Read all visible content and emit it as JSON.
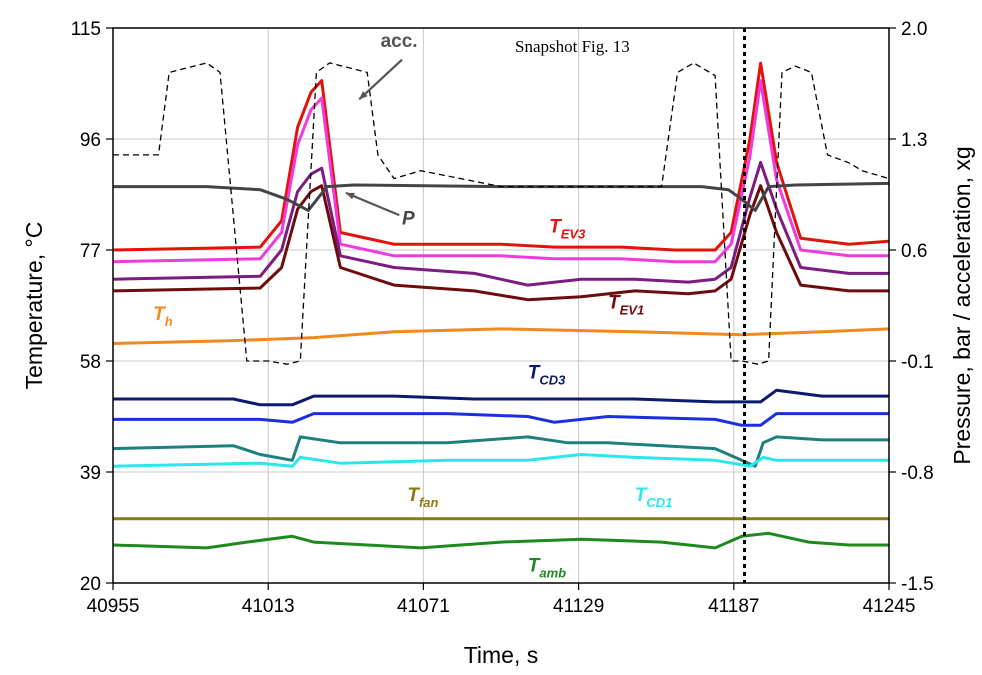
{
  "chart_data": {
    "type": "line",
    "title": "",
    "annotation_text": "Snapshot Fig. 13",
    "xlabel": "Time, s",
    "ylabel_left": "Temperature, °C",
    "ylabel_right": "Pressure, bar  /  acceleration, xg",
    "xlim": [
      40955,
      41245
    ],
    "ylim_left": [
      20,
      115
    ],
    "ylim_right": [
      -1.5,
      2.0
    ],
    "x_ticks": [
      "40955",
      "41013",
      "41071",
      "41129",
      "41187",
      "41245"
    ],
    "y_left_ticks": [
      "20",
      "39",
      "58",
      "77",
      "96",
      "115"
    ],
    "y_right_ticks": [
      "-1.5",
      "-0.8",
      "-0.1",
      "0.6",
      "1.3",
      "2.0"
    ],
    "grid": true,
    "snapshot_time": 41191,
    "series": [
      {
        "id": "TEV3",
        "label": "T",
        "sub": "EV3",
        "color": "#e3120b",
        "axis": "left",
        "x": [
          40955,
          41010,
          41018,
          41024,
          41029,
          41033,
          41040,
          41060,
          41100,
          41120,
          41145,
          41165,
          41180,
          41186,
          41193,
          41197,
          41203,
          41212,
          41230,
          41245
        ],
        "y": [
          77,
          77.5,
          82,
          98,
          104,
          106,
          80,
          78,
          78,
          77.5,
          77.5,
          77,
          77,
          80,
          96,
          109,
          92,
          79,
          78,
          78.5
        ]
      },
      {
        "id": "TEVm",
        "label": "",
        "sub": "",
        "color": "#ee3be0",
        "axis": "left",
        "x": [
          40955,
          41010,
          41018,
          41024,
          41029,
          41033,
          41040,
          41060,
          41100,
          41120,
          41145,
          41165,
          41180,
          41186,
          41193,
          41197,
          41203,
          41212,
          41230,
          41245
        ],
        "y": [
          75,
          75.5,
          80,
          95,
          101,
          103,
          78,
          76,
          76,
          75.5,
          75.5,
          75,
          75,
          78,
          93,
          106,
          89,
          77,
          76,
          76
        ]
      },
      {
        "id": "TEV2",
        "label": "",
        "sub": "",
        "color": "#7a1c80",
        "axis": "left",
        "x": [
          40955,
          41010,
          41018,
          41024,
          41029,
          41033,
          41040,
          41060,
          41090,
          41110,
          41130,
          41150,
          41170,
          41180,
          41186,
          41193,
          41197,
          41203,
          41212,
          41230,
          41245
        ],
        "y": [
          72,
          72.5,
          77,
          87,
          90,
          91,
          76,
          74,
          73,
          71,
          72,
          72,
          71.5,
          72,
          74,
          86,
          92,
          84,
          74,
          73,
          73
        ]
      },
      {
        "id": "TEV1",
        "label": "T",
        "sub": "EV1",
        "color": "#6e0c0c",
        "axis": "left",
        "x": [
          40955,
          41010,
          41018,
          41024,
          41029,
          41033,
          41040,
          41060,
          41090,
          41110,
          41130,
          41150,
          41170,
          41180,
          41186,
          41193,
          41197,
          41203,
          41212,
          41230,
          41245
        ],
        "y": [
          70,
          70.5,
          74,
          84,
          87,
          88,
          74,
          71,
          70,
          68.5,
          69,
          70,
          69.5,
          70,
          72,
          83,
          88,
          80,
          71,
          70,
          70
        ]
      },
      {
        "id": "Th",
        "label": "T",
        "sub": "h",
        "color": "#f08a1e",
        "axis": "left",
        "x": [
          40955,
          41000,
          41030,
          41060,
          41100,
          41150,
          41190,
          41220,
          41245
        ],
        "y": [
          61,
          61.5,
          62,
          63,
          63.5,
          63,
          62.5,
          63,
          63.5
        ]
      },
      {
        "id": "TCD3",
        "label": "T",
        "sub": "CD3",
        "color": "#0b1a6e",
        "axis": "left",
        "x": [
          40955,
          41000,
          41010,
          41022,
          41030,
          41060,
          41090,
          41120,
          41150,
          41180,
          41190,
          41197,
          41203,
          41220,
          41245
        ],
        "y": [
          51.5,
          51.5,
          50.5,
          50.5,
          52,
          52,
          51.5,
          51.5,
          51.5,
          51,
          51,
          51,
          53,
          52,
          52
        ]
      },
      {
        "id": "TCD2",
        "label": "",
        "sub": "",
        "color": "#1c2fe0",
        "axis": "left",
        "x": [
          40955,
          41010,
          41022,
          41030,
          41080,
          41110,
          41120,
          41140,
          41180,
          41190,
          41197,
          41203,
          41220,
          41245
        ],
        "y": [
          48,
          48,
          47.5,
          49,
          49,
          48.5,
          47.5,
          48.5,
          48,
          47,
          47,
          49,
          49,
          49
        ]
      },
      {
        "id": "TCDm",
        "label": "",
        "sub": "",
        "color": "#1c8080",
        "axis": "left",
        "x": [
          40955,
          41000,
          41010,
          41022,
          41025,
          41040,
          41080,
          41110,
          41125,
          41140,
          41180,
          41190,
          41195,
          41198,
          41203,
          41220,
          41245
        ],
        "y": [
          43,
          43.5,
          42,
          41,
          45,
          44,
          44,
          45,
          44,
          44,
          43,
          41,
          40,
          44,
          45,
          44.5,
          44.5
        ]
      },
      {
        "id": "TCD1",
        "label": "T",
        "sub": "CD1",
        "color": "#2be6ea",
        "axis": "left",
        "x": [
          40955,
          41010,
          41022,
          41025,
          41040,
          41080,
          41110,
          41130,
          41150,
          41180,
          41193,
          41198,
          41203,
          41220,
          41245
        ],
        "y": [
          40,
          40.5,
          40,
          41.5,
          40.5,
          41,
          41,
          42,
          41.5,
          41,
          40,
          41.5,
          41,
          41,
          41
        ]
      },
      {
        "id": "Tfan",
        "label": "T",
        "sub": "fan",
        "color": "#8a7a10",
        "axis": "left",
        "x": [
          40955,
          41245
        ],
        "y": [
          31,
          31
        ]
      },
      {
        "id": "Tamb",
        "label": "T",
        "sub": "amb",
        "color": "#1e8a1e",
        "axis": "left",
        "x": [
          40955,
          40990,
          41005,
          41022,
          41030,
          41050,
          41070,
          41100,
          41130,
          41160,
          41180,
          41190,
          41200,
          41215,
          41230,
          41245
        ],
        "y": [
          26.5,
          26,
          27,
          28,
          27,
          26.5,
          26,
          27,
          27.5,
          27,
          26,
          28,
          28.5,
          27,
          26.5,
          26.5
        ]
      },
      {
        "id": "P",
        "label": "P",
        "sub": "",
        "color": "#444444",
        "axis": "right",
        "x": [
          40955,
          40990,
          41010,
          41020,
          41028,
          41035,
          41045,
          41100,
          41150,
          41175,
          41185,
          41190,
          41195,
          41200,
          41210,
          41245
        ],
        "y": [
          1.0,
          1.0,
          0.98,
          0.92,
          0.85,
          1.0,
          1.01,
          1.0,
          1.0,
          1.0,
          0.98,
          0.92,
          0.85,
          1.0,
          1.01,
          1.02
        ]
      },
      {
        "id": "acc",
        "label": "acc.",
        "sub": "",
        "color": "#000000",
        "axis": "right",
        "dashed": true,
        "x": [
          40955,
          40972,
          40976,
          40990,
          40995,
          41005,
          41013,
          41020,
          41025,
          41031,
          41036,
          41050,
          41054,
          41060,
          41070,
          41100,
          41160,
          41166,
          41172,
          41180,
          41186,
          41190,
          41196,
          41200,
          41205,
          41210,
          41216,
          41222,
          41230,
          41235,
          41245
        ],
        "y": [
          1.2,
          1.2,
          1.72,
          1.78,
          1.72,
          -0.1,
          -0.1,
          -0.12,
          -0.1,
          1.72,
          1.78,
          1.72,
          1.2,
          1.05,
          1.1,
          1.0,
          1.0,
          1.72,
          1.78,
          1.7,
          -0.1,
          -0.1,
          -0.12,
          -0.1,
          1.72,
          1.76,
          1.72,
          1.2,
          1.15,
          1.1,
          1.05
        ]
      }
    ],
    "series_labels": [
      {
        "id": "acc",
        "text": "acc.",
        "sub": "",
        "color": "#555555",
        "x": 41055,
        "y_right": 1.88
      },
      {
        "id": "P",
        "text": "P",
        "sub": "",
        "color": "#444444",
        "x": 41063,
        "y_right": 0.76
      },
      {
        "id": "TEV3",
        "text": "T",
        "sub": "EV3",
        "color": "#e3120b",
        "x": 41118,
        "y_left": 80
      },
      {
        "id": "TEV1",
        "text": "T",
        "sub": "EV1",
        "color": "#6e0c0c",
        "x": 41140,
        "y_left": 67
      },
      {
        "id": "Th",
        "text": "T",
        "sub": "h",
        "color": "#f08a1e",
        "x": 40970,
        "y_left": 65
      },
      {
        "id": "TCD3",
        "text": "T",
        "sub": "CD3",
        "color": "#0b1a6e",
        "x": 41110,
        "y_left": 55
      },
      {
        "id": "Tfan",
        "text": "T",
        "sub": "fan",
        "color": "#8a7a10",
        "x": 41065,
        "y_left": 34
      },
      {
        "id": "TCD1",
        "text": "T",
        "sub": "CD1",
        "color": "#2be6ea",
        "x": 41150,
        "y_left": 34
      },
      {
        "id": "Tamb",
        "text": "T",
        "sub": "amb",
        "color": "#1e8a1e",
        "x": 41110,
        "y_left": 22
      }
    ]
  }
}
